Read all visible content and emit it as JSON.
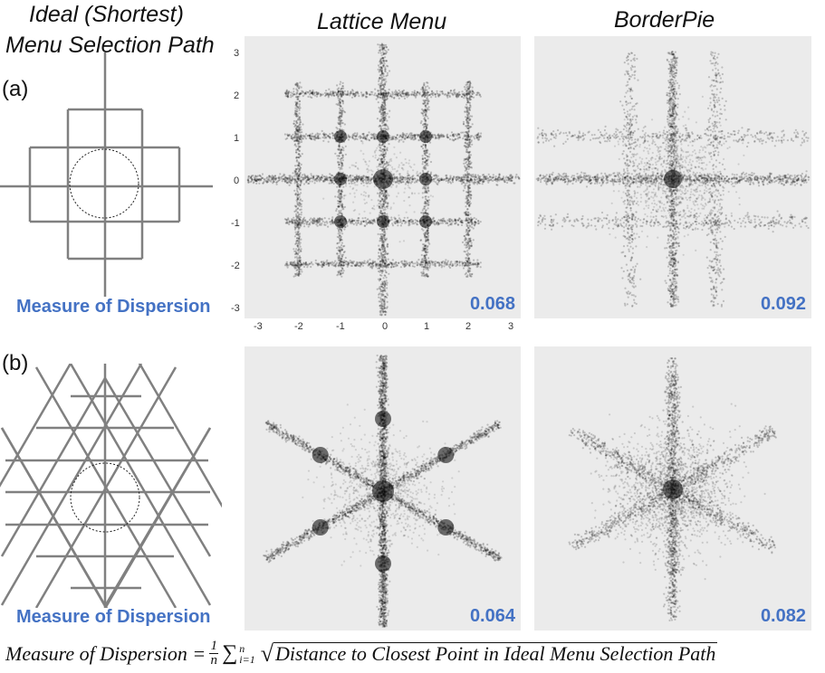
{
  "headers": {
    "ideal_line1": "Ideal (Shortest)",
    "ideal_line2": "Menu Selection Path",
    "lattice": "Lattice Menu",
    "borderpie": "BorderPie"
  },
  "rows": [
    {
      "label": "(a)",
      "dispersion_label": "Measure of Dispersion",
      "lattice_value": "0.068",
      "borderpie_value": "0.092"
    },
    {
      "label": "(b)",
      "dispersion_label": "Measure of Dispersion",
      "lattice_value": "0.064",
      "borderpie_value": "0.082"
    }
  ],
  "axis": {
    "y_ticks": [
      "3",
      "2",
      "1",
      "0",
      "-1",
      "-2",
      "-3"
    ],
    "x_ticks": [
      "-3",
      "-2",
      "-1",
      "0",
      "1",
      "2",
      "3"
    ]
  },
  "formula": {
    "lhs": "Measure of Dispersion =",
    "frac_num": "1",
    "frac_den": "n",
    "sum_symbol": "∑",
    "sum_upper": "n",
    "sum_lower": "i=1",
    "sqrt_symbol": "√",
    "radicand": "Distance to Closest Point in Ideal Menu Selection Path"
  },
  "colors": {
    "accent": "#4472c4",
    "plot_bg": "#ebebeb",
    "diagram_stroke": "#808080"
  }
}
